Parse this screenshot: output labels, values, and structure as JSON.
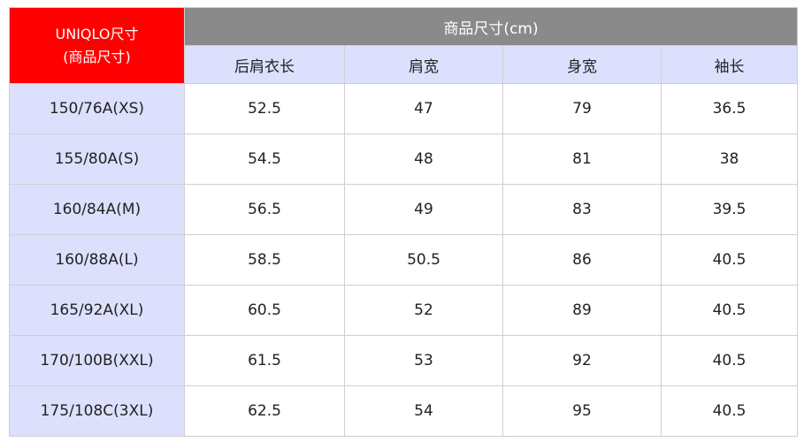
{
  "header": {
    "brand_line1": "UNIQLO尺寸",
    "brand_line2": "(商品尺寸)",
    "group_title": "商品尺寸(cm)",
    "columns": [
      "后肩衣长",
      "肩宽",
      "身宽",
      "袖长"
    ]
  },
  "rows": [
    {
      "size": "150/76A(XS)",
      "values": [
        "52.5",
        "47",
        "79",
        "36.5"
      ]
    },
    {
      "size": "155/80A(S)",
      "values": [
        "54.5",
        "48",
        "81",
        "38"
      ]
    },
    {
      "size": "160/84A(M)",
      "values": [
        "56.5",
        "49",
        "83",
        "39.5"
      ]
    },
    {
      "size": "160/88A(L)",
      "values": [
        "58.5",
        "50.5",
        "86",
        "40.5"
      ]
    },
    {
      "size": "165/92A(XL)",
      "values": [
        "60.5",
        "52",
        "89",
        "40.5"
      ]
    },
    {
      "size": "170/100B(XXL)",
      "values": [
        "61.5",
        "53",
        "92",
        "40.5"
      ]
    },
    {
      "size": "175/108C(3XL)",
      "values": [
        "62.5",
        "54",
        "95",
        "40.5"
      ]
    }
  ],
  "colors": {
    "brand": "#ff0000",
    "group_header": "#8a8a8a",
    "lavender": "#dde0fc"
  }
}
